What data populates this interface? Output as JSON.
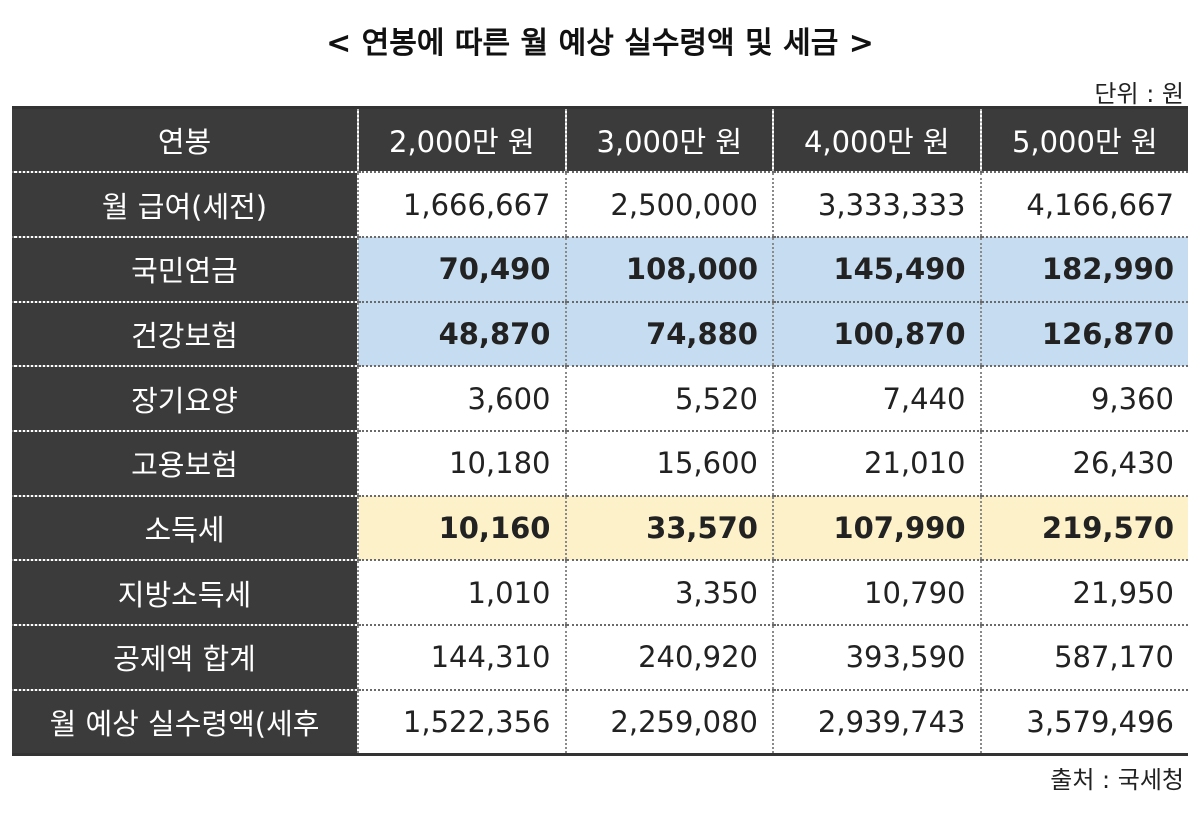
{
  "title": "< 연봉에 따른 월 예상 실수령액 및 세금 >",
  "unit_label": "단위 : 원",
  "source_label": "출처 : 국세청",
  "table": {
    "header": [
      "연봉",
      "2,000만 원",
      "3,000만 원",
      "4,000만 원",
      "5,000만 원"
    ],
    "rows": [
      {
        "label": "월 급여(세전)",
        "values": [
          "1,666,667",
          "2,500,000",
          "3,333,333",
          "4,166,667"
        ],
        "highlight": "none"
      },
      {
        "label": "국민연금",
        "values": [
          "70,490",
          "108,000",
          "145,490",
          "182,990"
        ],
        "highlight": "blue"
      },
      {
        "label": "건강보험",
        "values": [
          "48,870",
          "74,880",
          "100,870",
          "126,870"
        ],
        "highlight": "blue"
      },
      {
        "label": "장기요양",
        "values": [
          "3,600",
          "5,520",
          "7,440",
          "9,360"
        ],
        "highlight": "none"
      },
      {
        "label": "고용보험",
        "values": [
          "10,180",
          "15,600",
          "21,010",
          "26,430"
        ],
        "highlight": "none"
      },
      {
        "label": "소득세",
        "values": [
          "10,160",
          "33,570",
          "107,990",
          "219,570"
        ],
        "highlight": "yellow"
      },
      {
        "label": "지방소득세",
        "values": [
          "1,010",
          "3,350",
          "10,790",
          "21,950"
        ],
        "highlight": "none"
      },
      {
        "label": "공제액 합계",
        "values": [
          "144,310",
          "240,920",
          "393,590",
          "587,170"
        ],
        "highlight": "none"
      },
      {
        "label": "월 예상 실수령액(세후",
        "values": [
          "1,522,356",
          "2,259,080",
          "2,939,743",
          "3,579,496"
        ],
        "highlight": "none"
      }
    ]
  },
  "colors": {
    "header_bg": "#3b3b3b",
    "blue_highlight": "#c6dcf0",
    "yellow_highlight": "#fcf1c9"
  }
}
